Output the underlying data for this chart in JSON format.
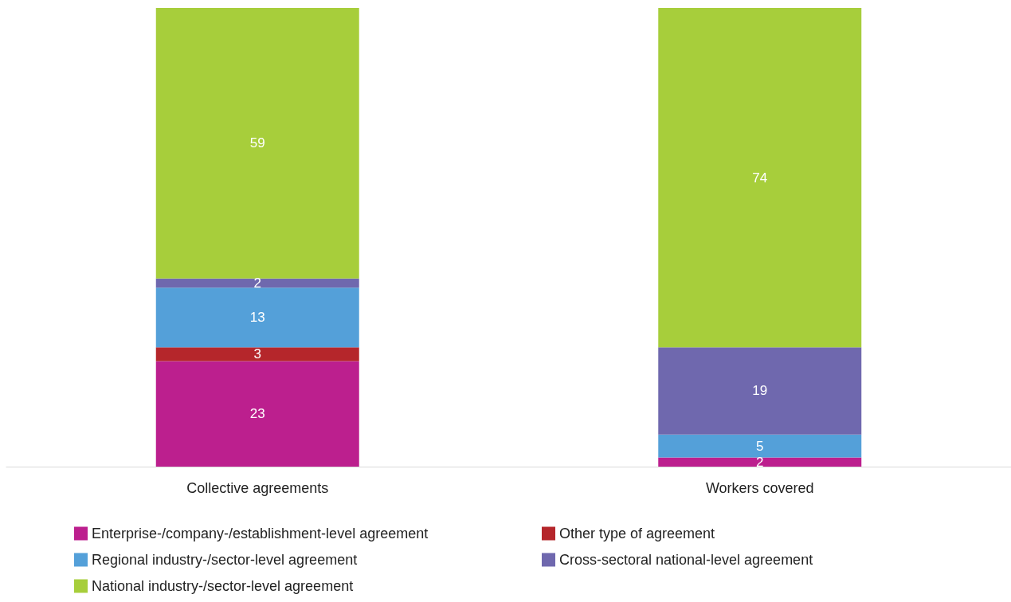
{
  "chart_data": {
    "type": "bar",
    "stacked": true,
    "data_labels": true,
    "legend": "bottom",
    "grid": false,
    "categories": [
      "Collective agreements",
      "Workers covered"
    ],
    "series": [
      {
        "name": "Enterprise-/company-/establishment-level agreement",
        "color": "#bc1f8e",
        "values": [
          23,
          2
        ]
      },
      {
        "name": "Other type of agreement",
        "color": "#b5262b",
        "values": [
          3,
          null
        ]
      },
      {
        "name": "Regional industry-/sector-level agreement",
        "color": "#54a0d9",
        "values": [
          13,
          5
        ]
      },
      {
        "name": "Cross-sectoral national-level agreement",
        "color": "#6f68ae",
        "values": [
          2,
          19
        ]
      },
      {
        "name": "National industry-/sector-level agreement",
        "color": "#a7ce3b",
        "values": [
          59,
          74
        ]
      }
    ]
  }
}
